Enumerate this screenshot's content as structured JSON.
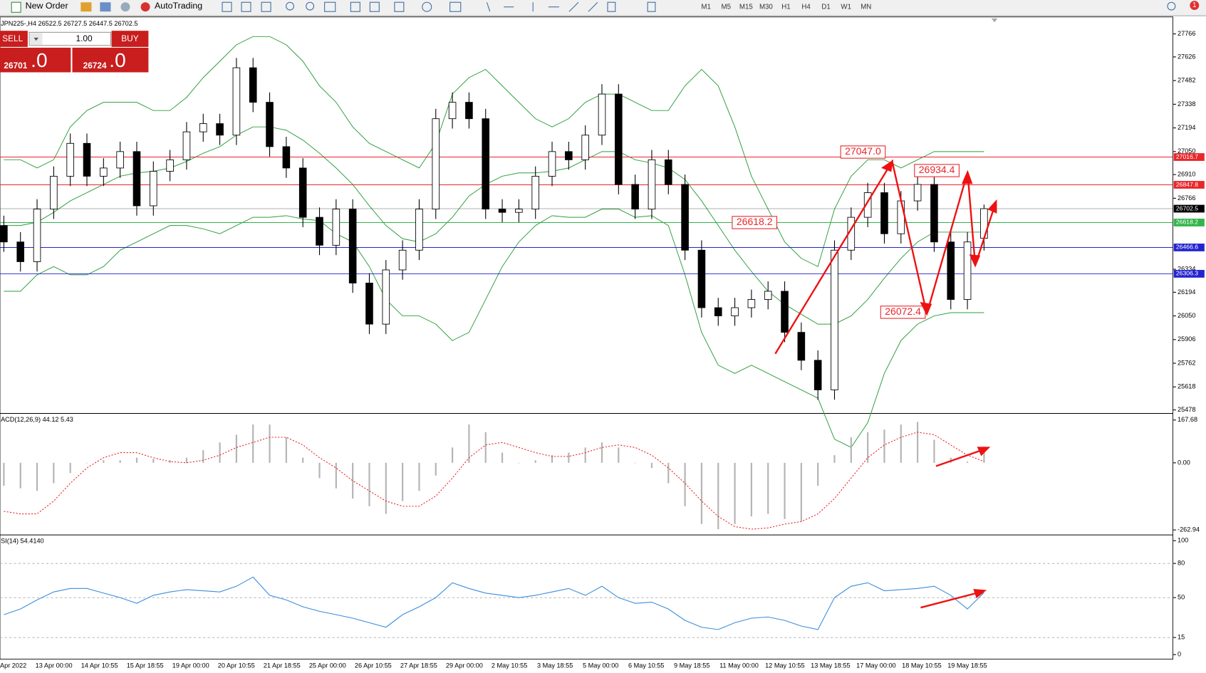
{
  "toolbar": {
    "new_order": "New Order",
    "auto_trading": "AutoTrading",
    "timeframes": [
      "M1",
      "M5",
      "M15",
      "M30",
      "H1",
      "H4",
      "D1",
      "W1",
      "MN"
    ],
    "notifications": "1"
  },
  "trade_panel": {
    "sell": "SELL",
    "lot": "1.00",
    "buy": "BUY",
    "bid": "26701",
    "bid_big": ".0",
    "ask": "26724",
    "ask_big": ".0"
  },
  "time_axis": [
    "Apr 2022",
    "13 Apr 00:00",
    "14 Apr 10:55",
    "15 Apr 18:55",
    "19 Apr 00:00",
    "20 Apr 10:55",
    "21 Apr 18:55",
    "25 Apr 00:00",
    "26 Apr 10:55",
    "27 Apr 18:55",
    "29 Apr 00:00",
    "2 May 10:55",
    "3 May 18:55",
    "5 May 00:00",
    "6 May 10:55",
    "9 May 18:55",
    "11 May 00:00",
    "12 May 10:55",
    "13 May 18:55",
    "17 May 00:00",
    "18 May 10:55",
    "19 May 18:55"
  ],
  "chart_data": [
    {
      "type": "candlestick",
      "title": "JPN225-,H4  26522.5 26727.5 26447.5 26702.5",
      "open": [
        26600,
        26500,
        26380,
        26700,
        26900,
        27100,
        26900,
        26950,
        27050,
        26720,
        26930,
        27000,
        27170,
        27220,
        27150,
        27560,
        27350,
        27080,
        26950,
        26650,
        26480,
        26700,
        26250,
        26000,
        26330,
        26450,
        26700,
        27250,
        27350,
        27250,
        26700,
        26680,
        26700,
        26900,
        27050,
        27000,
        27150,
        27400,
        26850,
        26700,
        27000,
        26850,
        26450,
        26100,
        26050,
        26100,
        26150,
        26200,
        25950,
        25780,
        25600,
        26450,
        26650,
        26800,
        26550,
        26750,
        26850,
        26500,
        26150,
        26522.5
      ],
      "high": [
        26660,
        26560,
        26760,
        26960,
        27160,
        27160,
        27010,
        27110,
        27110,
        26990,
        27060,
        27230,
        27280,
        27280,
        27620,
        27620,
        27410,
        27140,
        27010,
        26710,
        26760,
        26760,
        26310,
        26390,
        26510,
        26760,
        27310,
        27410,
        27410,
        27310,
        26760,
        26760,
        26960,
        27110,
        27110,
        27210,
        27460,
        27460,
        26910,
        27060,
        27060,
        26910,
        26510,
        26160,
        26160,
        26210,
        26260,
        26260,
        26010,
        25840,
        26510,
        26710,
        26860,
        26860,
        26810,
        26910,
        26910,
        26560,
        26560,
        26727.5
      ],
      "low": [
        26440,
        26320,
        26320,
        26640,
        26840,
        26840,
        26840,
        26890,
        26660,
        26660,
        26870,
        26940,
        27110,
        27090,
        27090,
        27290,
        27020,
        26890,
        26590,
        26420,
        26420,
        26190,
        25940,
        25940,
        26270,
        26390,
        26640,
        27190,
        27190,
        26640,
        26620,
        26620,
        26640,
        26840,
        26940,
        26940,
        27090,
        26790,
        26640,
        26640,
        26790,
        26390,
        26040,
        25990,
        25990,
        26040,
        26090,
        25890,
        25720,
        25540,
        25540,
        26390,
        26590,
        26490,
        26490,
        26690,
        26440,
        26090,
        26090,
        26447.5
      ],
      "close": [
        26500,
        26380,
        26700,
        26900,
        27100,
        26900,
        26950,
        27050,
        26720,
        26930,
        27000,
        27170,
        27220,
        27150,
        27560,
        27350,
        27080,
        26950,
        26650,
        26480,
        26700,
        26250,
        26000,
        26330,
        26450,
        26700,
        27250,
        27350,
        27250,
        26700,
        26680,
        26700,
        26900,
        27050,
        27000,
        27150,
        27400,
        26850,
        26700,
        27000,
        26850,
        26450,
        26100,
        26050,
        26100,
        26150,
        26200,
        25950,
        25780,
        25600,
        26450,
        26650,
        26800,
        26550,
        26750,
        26850,
        26500,
        26150,
        26500,
        26702.5
      ],
      "up_color": "#ffffff",
      "down_color": "#000000",
      "bands": [
        {
          "color": "#2e9e3e",
          "values": [
            27000,
            27000,
            26950,
            27000,
            27200,
            27300,
            27350,
            27350,
            27350,
            27300,
            27300,
            27380,
            27500,
            27600,
            27700,
            27750,
            27750,
            27700,
            27600,
            27450,
            27350,
            27200,
            27100,
            27050,
            27000,
            26950,
            27100,
            27400,
            27500,
            27550,
            27450,
            27350,
            27250,
            27200,
            27250,
            27350,
            27400,
            27400,
            27350,
            27300,
            27300,
            27450,
            27550,
            27450,
            27200,
            26900,
            26700,
            26500,
            26400,
            26350,
            26700,
            26900,
            27000,
            27000,
            26950,
            27000,
            27050,
            27050,
            27050,
            27050
          ]
        },
        {
          "color": "#2e9e3e",
          "values": [
            26600,
            26600,
            26620,
            26680,
            26750,
            26800,
            26850,
            26900,
            26920,
            26930,
            26950,
            26990,
            27040,
            27080,
            27150,
            27200,
            27200,
            27180,
            27120,
            27040,
            26950,
            26850,
            26720,
            26600,
            26520,
            26500,
            26550,
            26650,
            26780,
            26850,
            26900,
            26920,
            26920,
            26930,
            26950,
            27000,
            27050,
            27050,
            27000,
            26980,
            26950,
            26880,
            26750,
            26600,
            26450,
            26320,
            26200,
            26120,
            26060,
            26000,
            26000,
            26050,
            26150,
            26280,
            26400,
            26500,
            26560,
            26560,
            26560,
            26560
          ]
        },
        {
          "color": "#2e9e3e",
          "values": [
            26200,
            26200,
            26300,
            26350,
            26300,
            26300,
            26350,
            26450,
            26500,
            26550,
            26600,
            26600,
            26580,
            26550,
            26600,
            26650,
            26650,
            26660,
            26640,
            26630,
            26550,
            26500,
            26350,
            26150,
            26050,
            26050,
            26000,
            25900,
            25950,
            26150,
            26350,
            26500,
            26600,
            26660,
            26650,
            26650,
            26700,
            26700,
            26650,
            26660,
            26600,
            26300,
            25950,
            25750,
            25700,
            25750,
            25700,
            25650,
            25600,
            25550,
            25300,
            25250,
            25400,
            25700,
            25900,
            26000,
            26050,
            26070,
            26070,
            26070
          ]
        }
      ],
      "hlines": [
        {
          "value": 27016.7,
          "color": "#e8262b"
        },
        {
          "value": 26847.8,
          "color": "#e8262b"
        },
        {
          "value": 26702.5,
          "color": "#000000"
        },
        {
          "value": 26618.2,
          "color": "#32b44a"
        },
        {
          "value": 26466.6,
          "color": "#2323d0"
        },
        {
          "value": 26306.3,
          "color": "#2323d0"
        }
      ],
      "annotations": [
        {
          "value": 27047,
          "label": "27047.0"
        },
        {
          "value": 26934.4,
          "label": "26934.4"
        },
        {
          "value": 26618.2,
          "label": "26618.2"
        },
        {
          "value": 26072.4,
          "label": "26072.4"
        }
      ],
      "ylim": [
        25459,
        27860
      ],
      "yticks": [
        27766,
        27626,
        27482,
        27338,
        27194,
        27050,
        26910,
        26766,
        26334,
        26194,
        26050,
        25906,
        25762,
        25618,
        25478
      ]
    },
    {
      "type": "macd",
      "title": "ACD(12,26,9) 44.12 5.43",
      "histogram": {
        "color": "#b4b4b4",
        "values": [
          -90,
          -100,
          -110,
          -80,
          -40,
          0,
          10,
          10,
          20,
          15,
          10,
          20,
          50,
          80,
          110,
          150,
          150,
          100,
          20,
          -60,
          -100,
          -140,
          -170,
          -200,
          -150,
          -110,
          -50,
          60,
          150,
          120,
          40,
          0,
          10,
          30,
          40,
          60,
          80,
          60,
          0,
          -20,
          -80,
          -170,
          -240,
          -260,
          -240,
          -210,
          -200,
          -220,
          -230,
          -90,
          30,
          100,
          120,
          130,
          150,
          160,
          90,
          20,
          5,
          44.12
        ]
      },
      "signal": {
        "color": "#e8262b",
        "values": [
          -190,
          -200,
          -200,
          -150,
          -80,
          -20,
          20,
          40,
          40,
          20,
          5,
          0,
          10,
          30,
          60,
          80,
          100,
          100,
          70,
          20,
          -20,
          -70,
          -110,
          -150,
          -170,
          -170,
          -130,
          -60,
          20,
          70,
          80,
          60,
          40,
          25,
          25,
          40,
          60,
          70,
          60,
          30,
          -20,
          -80,
          -150,
          -210,
          -250,
          -260,
          -255,
          -240,
          -230,
          -200,
          -140,
          -60,
          20,
          70,
          100,
          120,
          110,
          70,
          30,
          5.43
        ]
      },
      "ylim": [
        -278,
        189
      ],
      "yticks": [
        167.68,
        {
          "value": 0,
          "label": "0.00"
        },
        -262.94
      ]
    },
    {
      "type": "line",
      "title": "SI(14) 54.4140",
      "series": [
        {
          "color": "#3a8edb",
          "values": [
            35,
            40,
            48,
            55,
            58,
            58,
            54,
            50,
            45,
            52,
            55,
            57,
            56,
            55,
            60,
            68,
            52,
            48,
            42,
            38,
            35,
            32,
            28,
            24,
            35,
            42,
            50,
            63,
            58,
            54,
            52,
            50,
            52,
            55,
            58,
            52,
            60,
            50,
            45,
            46,
            40,
            30,
            24,
            22,
            28,
            32,
            33,
            30,
            25,
            22,
            50,
            60,
            63,
            56,
            57,
            58,
            60,
            52,
            40,
            54.414
          ]
        }
      ],
      "levels": [
        80,
        50,
        15
      ],
      "ylim": [
        -4,
        104
      ],
      "yticks": [
        100,
        80,
        50,
        15,
        0
      ]
    }
  ]
}
